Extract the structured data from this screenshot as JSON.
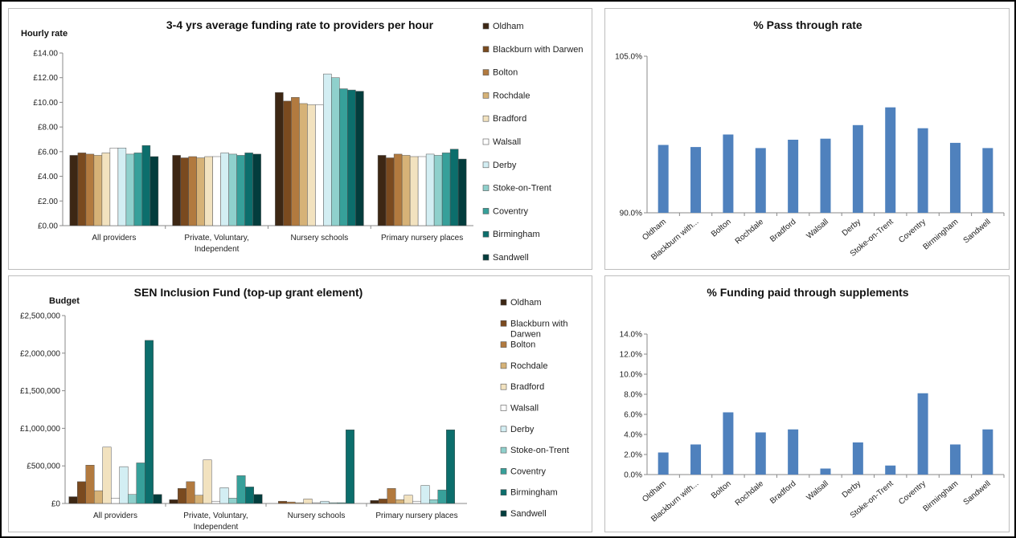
{
  "colors": {
    "Oldham": "#3d2714",
    "Blackburn with Darwen": "#7a4a1f",
    "Bolton": "#b27a3f",
    "Rochdale": "#d6b277",
    "Bradford": "#f2e2bf",
    "Walsall": "#ffffff",
    "Derby": "#d3eef3",
    "Stoke-on-Trent": "#8fd0cc",
    "Coventry": "#37a09a",
    "Birmingham": "#0c6e6c",
    "Sandwell": "#033d3d",
    "line": "#4f81bd"
  },
  "chart_data": [
    {
      "id": "funding",
      "type": "bar",
      "title": "3-4 yrs average funding rate to providers per hour",
      "ylabel": "Hourly rate",
      "ylim": [
        0,
        14
      ],
      "yticks": [
        "£0.00",
        "£2.00",
        "£4.00",
        "£6.00",
        "£8.00",
        "£10.00",
        "£12.00",
        "£14.00"
      ],
      "categories": [
        [
          "All providers"
        ],
        [
          "Private, Voluntary,",
          "Independent"
        ],
        [
          "Nursery schools"
        ],
        [
          "Primary nursery places"
        ]
      ],
      "legend_position": "right",
      "series": [
        {
          "name": "Oldham",
          "values": [
            5.7,
            5.7,
            10.8,
            5.7
          ]
        },
        {
          "name": "Blackburn with Darwen",
          "values": [
            5.9,
            5.5,
            10.1,
            5.5
          ]
        },
        {
          "name": "Bolton",
          "values": [
            5.8,
            5.6,
            10.4,
            5.8
          ]
        },
        {
          "name": "Rochdale",
          "values": [
            5.7,
            5.5,
            9.9,
            5.7
          ]
        },
        {
          "name": "Bradford",
          "values": [
            5.9,
            5.6,
            9.8,
            5.6
          ]
        },
        {
          "name": "Walsall",
          "values": [
            6.3,
            5.6,
            9.8,
            5.6
          ]
        },
        {
          "name": "Derby",
          "values": [
            6.3,
            5.9,
            12.3,
            5.8
          ]
        },
        {
          "name": "Stoke-on-Trent",
          "values": [
            5.8,
            5.8,
            12.0,
            5.7
          ]
        },
        {
          "name": "Coventry",
          "values": [
            5.9,
            5.7,
            11.1,
            5.9
          ]
        },
        {
          "name": "Birmingham",
          "values": [
            6.5,
            5.9,
            11.0,
            6.2
          ]
        },
        {
          "name": "Sandwell",
          "values": [
            5.6,
            5.8,
            10.9,
            5.4
          ]
        }
      ]
    },
    {
      "id": "passthrough",
      "type": "bar",
      "title": "% Pass through rate",
      "ylim": [
        90,
        105
      ],
      "yticks": [
        "90.0%",
        "105.0%"
      ],
      "categories": [
        "Oldham",
        "Blackburn with...",
        "Bolton",
        "Rochdale",
        "Bradford",
        "Walsall",
        "Derby",
        "Stoke-on-Trent",
        "Coventry",
        "Birmingham",
        "Sandwell"
      ],
      "values": [
        96.5,
        96.3,
        97.5,
        96.2,
        97.0,
        97.1,
        98.4,
        100.1,
        98.1,
        96.7,
        96.2
      ]
    },
    {
      "id": "sen",
      "type": "bar",
      "title": "SEN Inclusion Fund (top-up grant element)",
      "ylabel": "Budget",
      "ylim": [
        0,
        2500000
      ],
      "yticks": [
        "£0",
        "£500,000",
        "£1,000,000",
        "£1,500,000",
        "£2,000,000",
        "£2,500,000"
      ],
      "categories": [
        [
          "All providers"
        ],
        [
          "Private, Voluntary,",
          "Independent"
        ],
        [
          "Nursery schools"
        ],
        [
          "Primary nursery places"
        ]
      ],
      "legend_position": "right",
      "series": [
        {
          "name": "Oldham",
          "values": [
            90000,
            50000,
            0,
            40000
          ]
        },
        {
          "name": "Blackburn with Darwen",
          "values": [
            290000,
            200000,
            30000,
            60000
          ]
        },
        {
          "name": "Bolton",
          "values": [
            510000,
            290000,
            20000,
            200000
          ]
        },
        {
          "name": "Rochdale",
          "values": [
            170000,
            110000,
            10000,
            50000
          ]
        },
        {
          "name": "Bradford",
          "values": [
            750000,
            580000,
            60000,
            110000
          ]
        },
        {
          "name": "Walsall",
          "values": [
            70000,
            30000,
            10000,
            30000
          ]
        },
        {
          "name": "Derby",
          "values": [
            490000,
            210000,
            30000,
            240000
          ]
        },
        {
          "name": "Stoke-on-Trent",
          "values": [
            120000,
            70000,
            10000,
            50000
          ]
        },
        {
          "name": "Coventry",
          "values": [
            540000,
            370000,
            10000,
            180000
          ]
        },
        {
          "name": "Birmingham",
          "values": [
            2170000,
            220000,
            980000,
            980000
          ]
        },
        {
          "name": "Sandwell",
          "values": [
            120000,
            120000,
            0,
            0
          ]
        }
      ]
    },
    {
      "id": "supplements",
      "type": "bar",
      "title": "% Funding paid through supplements",
      "ylim": [
        0,
        14
      ],
      "yticks": [
        "0.0%",
        "2.0%",
        "4.0%",
        "6.0%",
        "8.0%",
        "10.0%",
        "12.0%",
        "14.0%"
      ],
      "categories": [
        "Oldham",
        "Blackburn with...",
        "Bolton",
        "Rochdale",
        "Bradford",
        "Walsall",
        "Derby",
        "Stoke-on-Trent",
        "Coventry",
        "Birmingham",
        "Sandwell"
      ],
      "values": [
        2.2,
        3.0,
        6.2,
        4.2,
        4.5,
        0.6,
        3.2,
        0.9,
        8.1,
        3.0,
        4.5
      ]
    }
  ]
}
